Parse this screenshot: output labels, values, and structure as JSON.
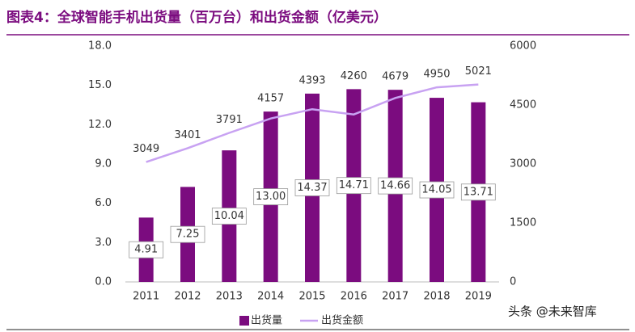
{
  "chart_data": {
    "type": "bar-line",
    "title": "图表4：全球智能手机出货量（百万台）和出货金额（亿美元）",
    "categories": [
      "2011",
      "2012",
      "2013",
      "2014",
      "2015",
      "2016",
      "2017",
      "2018",
      "2019"
    ],
    "series": [
      {
        "name": "出货量",
        "type": "bar",
        "color": "#7b0c7f",
        "values": [
          4.91,
          7.25,
          10.04,
          13.0,
          14.37,
          14.71,
          14.66,
          14.05,
          13.71
        ],
        "value_labels": [
          "4.91",
          "7.25",
          "10.04",
          "13.00",
          "14.37",
          "14.71",
          "14.66",
          "14.05",
          "13.71"
        ]
      },
      {
        "name": "出货金额",
        "type": "line",
        "axis": "y2",
        "color": "#c8a2f2",
        "values": [
          3049,
          3401,
          3791,
          4157,
          4393,
          4260,
          4679,
          4950,
          5021
        ]
      }
    ],
    "ylim": [
      0,
      18
    ],
    "yticks": [
      {
        "value": 0,
        "label": "0.0"
      },
      {
        "value": 3,
        "label": "3.0"
      },
      {
        "value": 6,
        "label": "6.0"
      },
      {
        "value": 9,
        "label": "9.0"
      },
      {
        "value": 12,
        "label": "12.0"
      },
      {
        "value": 15,
        "label": "15.0"
      },
      {
        "value": 18,
        "label": "18.0"
      }
    ],
    "y2lim": [
      0,
      6000
    ],
    "y2ticks": [
      0,
      1500,
      3000,
      4500,
      6000
    ],
    "legend": "bottom",
    "watermark": "头条 @未来智库"
  }
}
